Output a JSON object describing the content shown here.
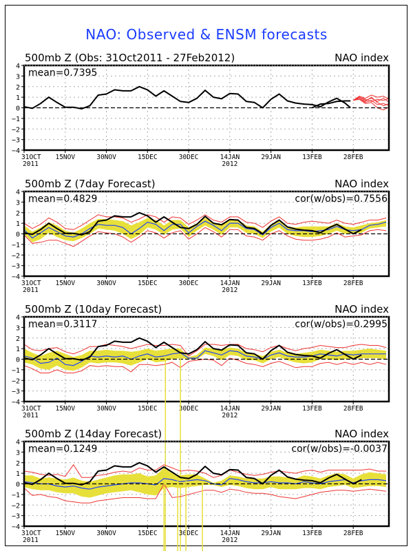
{
  "title": "NAO: Observed & ENSM forecasts",
  "colors": {
    "title": "#1a3cff",
    "observed": "#000000",
    "ensemble_mean": "#2244ee",
    "spread_fill": "#e8e03a",
    "envelope": "#ee3333",
    "forecast_members": "#ee3333"
  },
  "chart_data": [
    {
      "type": "line",
      "title": "500mb Z (Obs: 31Oct2011 - 27Feb2012)",
      "right_title": "NAO index",
      "annotation_left": "mean=0.7395",
      "annotation_right": "",
      "ylim": [
        -4,
        4
      ],
      "yticks": [
        4,
        3,
        2,
        1,
        0,
        -1,
        -2,
        -3,
        -4
      ],
      "xticks": [
        "31OCT",
        "15NOV",
        "30NOV",
        "15DEC",
        "30DEC",
        "14JAN",
        "29JAN",
        "13FEB",
        "28FEB"
      ],
      "xtick_sublabels": {
        "31OCT": "2011",
        "14JAN": "2012"
      },
      "xlim_days": [
        0,
        133
      ],
      "grid": true,
      "observed": {
        "name": "observed NAO",
        "days": [
          0,
          3,
          6,
          9,
          12,
          15,
          18,
          21,
          24,
          27,
          30,
          33,
          36,
          39,
          42,
          45,
          48,
          51,
          54,
          57,
          60,
          63,
          66,
          69,
          72,
          75,
          78,
          81,
          84,
          87,
          90,
          93,
          96,
          99,
          102,
          105,
          108,
          111,
          114,
          117,
          119
        ],
        "values": [
          0.1,
          -0.05,
          0.4,
          1.0,
          0.5,
          0.05,
          0.05,
          -0.1,
          0.2,
          1.2,
          1.3,
          1.7,
          1.6,
          1.6,
          2.0,
          1.7,
          1.1,
          1.6,
          1.1,
          0.6,
          0.5,
          0.9,
          1.65,
          1.0,
          0.85,
          1.35,
          1.3,
          0.6,
          0.5,
          0.0,
          0.8,
          1.3,
          0.65,
          0.45,
          0.35,
          0.3,
          0.1,
          0.55,
          0.9,
          0.45,
          0.0
        ]
      },
      "observed_tail": {
        "days": [
          119,
          122,
          125,
          128,
          131,
          133
        ],
        "values": [
          0.0,
          0.35,
          0.4,
          0.6,
          0.65,
          0.65
        ]
      },
      "forecast_members": {
        "name": "ensemble member forecasts",
        "start_day": 133,
        "members": [
          [
            0.7,
            1.0,
            0.7,
            0.9,
            0.6,
            0.9,
            0.5
          ],
          [
            0.7,
            0.9,
            0.5,
            0.7,
            0.3,
            0.4,
            0.2
          ],
          [
            0.7,
            1.1,
            0.9,
            1.2,
            1.0,
            1.1,
            0.8
          ],
          [
            0.7,
            0.8,
            0.4,
            0.5,
            0.0,
            -0.2,
            0.1
          ],
          [
            0.7,
            1.0,
            0.8,
            0.6,
            0.8,
            0.7,
            0.9
          ],
          [
            0.7,
            0.9,
            0.6,
            1.0,
            0.5,
            0.2,
            0.4
          ]
        ]
      }
    },
    {
      "type": "line",
      "title": "500mb Z (7day Forecast)",
      "right_title": "NAO index",
      "annotation_left": "mean=0.4829",
      "annotation_right": "cor(w/obs)=0.7556",
      "ylim": [
        -4,
        4
      ],
      "yticks": [
        4,
        3,
        2,
        1,
        0,
        -1,
        -2,
        -3,
        -4
      ],
      "xticks": [
        "31OCT",
        "15NOV",
        "30NOV",
        "15DEC",
        "30DEC",
        "14JAN",
        "29JAN",
        "13FEB",
        "28FEB"
      ],
      "xtick_sublabels": {
        "31OCT": "2011",
        "14JAN": "2012"
      },
      "grid": true,
      "days": [
        0,
        3,
        6,
        9,
        12,
        15,
        18,
        21,
        24,
        27,
        30,
        33,
        36,
        39,
        42,
        45,
        48,
        51,
        54,
        57,
        60,
        63,
        66,
        69,
        72,
        75,
        78,
        81,
        84,
        87,
        90,
        93,
        96,
        99,
        102,
        105,
        108,
        111,
        114,
        117,
        120,
        123,
        126,
        129,
        132
      ],
      "observed": [
        0.1,
        -0.05,
        0.4,
        1.0,
        0.5,
        0.05,
        0.05,
        -0.1,
        0.2,
        1.2,
        1.3,
        1.7,
        1.6,
        1.6,
        2.0,
        1.7,
        1.1,
        1.6,
        1.1,
        0.6,
        0.5,
        0.9,
        1.65,
        1.0,
        0.85,
        1.35,
        1.3,
        0.6,
        0.5,
        0.0,
        0.8,
        1.3,
        0.65,
        0.45,
        0.35,
        0.3,
        0.1,
        0.55,
        0.9,
        0.45,
        0.0,
        0.4,
        0.45,
        0.65,
        0.75
      ],
      "ensemble_mean": [
        0.4,
        -0.4,
        0.1,
        0.6,
        0.2,
        -0.2,
        -0.3,
        0.0,
        0.5,
        0.9,
        0.8,
        0.8,
        0.6,
        0.0,
        0.5,
        1.1,
        0.9,
        0.3,
        0.9,
        0.9,
        0.1,
        0.7,
        1.2,
        0.8,
        0.3,
        1.0,
        1.0,
        0.5,
        0.4,
        -0.1,
        0.6,
        1.0,
        0.4,
        0.3,
        0.3,
        0.2,
        0.3,
        0.4,
        0.7,
        0.4,
        0.3,
        0.4,
        0.8,
        0.9,
        1.1
      ],
      "spread_upper": [
        0.8,
        0.2,
        0.6,
        1.1,
        0.8,
        0.3,
        0.1,
        0.5,
        1.0,
        1.4,
        1.4,
        1.3,
        1.2,
        0.8,
        1.1,
        1.5,
        1.3,
        0.8,
        1.3,
        1.3,
        0.6,
        1.0,
        1.5,
        1.1,
        0.8,
        1.3,
        1.3,
        0.8,
        0.7,
        0.2,
        0.9,
        1.3,
        0.7,
        0.6,
        0.7,
        0.7,
        0.7,
        0.7,
        1.0,
        0.7,
        0.6,
        0.8,
        1.0,
        1.1,
        1.3
      ],
      "spread_lower": [
        0.0,
        -0.8,
        -0.5,
        0.1,
        -0.3,
        -0.6,
        -0.7,
        -0.4,
        0.0,
        0.5,
        0.4,
        0.3,
        0.0,
        -0.5,
        -0.1,
        0.6,
        0.4,
        -0.1,
        0.4,
        0.5,
        -0.3,
        0.3,
        0.8,
        0.4,
        -0.1,
        0.6,
        0.6,
        0.1,
        0.0,
        -0.4,
        0.2,
        0.6,
        0.0,
        -0.2,
        -0.3,
        -0.3,
        -0.2,
        0.0,
        0.3,
        0.0,
        0.0,
        0.1,
        0.5,
        0.6,
        0.7
      ],
      "envelope_upper": [
        1.0,
        0.5,
        0.9,
        1.5,
        1.1,
        0.5,
        0.4,
        0.8,
        1.3,
        1.8,
        1.6,
        1.6,
        1.5,
        1.1,
        1.4,
        1.8,
        1.6,
        1.1,
        1.6,
        1.5,
        0.9,
        1.3,
        1.8,
        1.3,
        1.1,
        1.6,
        1.6,
        1.1,
        1.0,
        0.6,
        1.2,
        1.6,
        1.0,
        0.9,
        1.1,
        1.2,
        1.1,
        1.0,
        1.3,
        1.0,
        0.9,
        1.1,
        1.3,
        1.3,
        1.5
      ],
      "envelope_lower": [
        -0.1,
        -0.9,
        -0.8,
        -0.6,
        -0.6,
        -0.9,
        -1.2,
        -0.7,
        -0.2,
        0.2,
        0.1,
        0.0,
        -0.3,
        -0.8,
        -0.3,
        0.3,
        0.1,
        -0.4,
        0.1,
        0.3,
        -0.5,
        0.0,
        0.6,
        0.2,
        -0.3,
        0.4,
        0.4,
        -0.2,
        -0.3,
        -0.6,
        0.0,
        0.3,
        -0.2,
        -0.5,
        -0.6,
        -0.6,
        -0.5,
        -0.3,
        0.1,
        -0.3,
        -0.2,
        -0.1,
        0.3,
        0.4,
        0.3
      ]
    },
    {
      "type": "line",
      "title": "500mb Z (10day Forecast)",
      "right_title": "NAO index",
      "annotation_left": "mean=0.3117",
      "annotation_right": "cor(w/obs)=0.2995",
      "ylim": [
        -4,
        4
      ],
      "yticks": [
        4,
        3,
        2,
        1,
        0,
        -1,
        -2,
        -3,
        -4
      ],
      "xticks": [
        "31OCT",
        "15NOV",
        "30NOV",
        "15DEC",
        "30DEC",
        "14JAN",
        "29JAN",
        "13FEB",
        "28FEB"
      ],
      "xtick_sublabels": {
        "31OCT": "2011",
        "14JAN": "2012"
      },
      "grid": true,
      "days": [
        0,
        3,
        6,
        9,
        12,
        15,
        18,
        21,
        24,
        27,
        30,
        33,
        36,
        39,
        42,
        45,
        48,
        51,
        54,
        57,
        60,
        63,
        66,
        69,
        72,
        75,
        78,
        81,
        84,
        87,
        90,
        93,
        96,
        99,
        102,
        105,
        108,
        111,
        114,
        117,
        120,
        123,
        126,
        129,
        132
      ],
      "observed": [
        0.1,
        -0.05,
        0.4,
        1.0,
        0.5,
        0.05,
        0.05,
        -0.1,
        0.2,
        1.2,
        1.3,
        1.7,
        1.6,
        1.6,
        2.0,
        1.7,
        1.1,
        1.6,
        1.1,
        0.6,
        0.5,
        0.9,
        1.65,
        1.0,
        0.85,
        1.35,
        1.3,
        0.6,
        0.5,
        0.0,
        0.8,
        1.3,
        0.65,
        0.45,
        0.35,
        0.3,
        0.1,
        0.55,
        0.9,
        0.45,
        0.0,
        0.4,
        0.45,
        0.65,
        0.75
      ],
      "ensemble_mean": [
        0.3,
        0.1,
        -0.4,
        -0.3,
        0.1,
        -0.5,
        -0.6,
        -0.2,
        0.3,
        0.2,
        0.3,
        0.2,
        0.3,
        0.0,
        0.3,
        0.5,
        0.2,
        0.3,
        0.5,
        0.6,
        0.1,
        0.1,
        0.8,
        0.6,
        0.4,
        0.8,
        0.7,
        0.3,
        0.2,
        0.0,
        0.4,
        0.6,
        0.3,
        0.2,
        0.2,
        0.3,
        0.5,
        0.4,
        0.3,
        0.5,
        0.4,
        0.5,
        0.5,
        0.5,
        0.5
      ],
      "spread_upper": [
        1.0,
        0.6,
        0.3,
        0.6,
        0.8,
        0.5,
        0.2,
        0.4,
        0.8,
        0.8,
        0.9,
        0.8,
        0.8,
        0.7,
        0.8,
        1.0,
        0.8,
        0.9,
        1.0,
        1.0,
        0.2,
        0.4,
        1.1,
        1.0,
        0.9,
        1.1,
        1.0,
        0.6,
        0.5,
        0.3,
        0.7,
        0.9,
        0.6,
        0.5,
        0.6,
        0.7,
        0.9,
        0.8,
        0.7,
        0.8,
        0.8,
        0.9,
        1.0,
        0.9,
        0.8
      ],
      "spread_lower": [
        -0.3,
        -0.5,
        -0.9,
        -1.0,
        -0.6,
        -1.0,
        -1.1,
        -0.8,
        -0.3,
        -0.4,
        -0.3,
        -0.3,
        -0.4,
        -0.6,
        -0.3,
        0.0,
        -0.3,
        -0.2,
        0.0,
        0.1,
        0.0,
        0.0,
        0.5,
        0.3,
        -0.1,
        0.4,
        0.3,
        -0.1,
        -0.1,
        -0.4,
        0.0,
        0.2,
        -0.1,
        -0.3,
        -0.4,
        -0.3,
        0.0,
        0.0,
        -0.1,
        0.0,
        0.0,
        0.1,
        0.1,
        0.1,
        0.0
      ],
      "envelope_upper": [
        1.4,
        0.9,
        0.8,
        1.0,
        1.1,
        0.7,
        0.5,
        0.8,
        1.2,
        1.2,
        1.4,
        1.3,
        1.2,
        1.0,
        1.2,
        1.4,
        1.3,
        1.3,
        1.4,
        1.3,
        0.3,
        0.8,
        1.4,
        1.4,
        1.3,
        1.4,
        1.4,
        1.0,
        0.9,
        0.7,
        1.1,
        1.3,
        1.0,
        0.8,
        1.0,
        1.1,
        1.3,
        1.2,
        1.1,
        1.1,
        1.3,
        1.4,
        1.3,
        1.3,
        1.1
      ],
      "envelope_lower": [
        -0.6,
        -0.9,
        -1.3,
        -1.3,
        -1.0,
        -1.3,
        -1.3,
        -1.1,
        -0.6,
        -0.7,
        -0.6,
        -0.7,
        -0.7,
        -1.2,
        -0.5,
        -0.5,
        -0.6,
        -0.5,
        -0.3,
        -0.8,
        -0.2,
        -0.1,
        0.0,
        -0.1,
        -0.6,
        0.1,
        -0.1,
        -0.4,
        -0.5,
        -0.7,
        -0.4,
        -0.2,
        -0.5,
        -0.8,
        -0.7,
        -0.7,
        -0.4,
        -0.3,
        -0.5,
        -0.3,
        -0.5,
        -0.3,
        -0.5,
        -0.3,
        -0.5
      ],
      "anomalous_spikes_days": [
        51.5,
        57
      ]
    },
    {
      "type": "line",
      "title": "500mb Z (14day Forecast)",
      "right_title": "NAO index",
      "annotation_left": "mean=0.1249",
      "annotation_right": "cor(w/obs)=-0.0037",
      "ylim": [
        -4,
        4
      ],
      "yticks": [
        4,
        3,
        2,
        1,
        0,
        -1,
        -2,
        -3,
        -4
      ],
      "xticks": [
        "31OCT",
        "15NOV",
        "30NOV",
        "15DEC",
        "30DEC",
        "14JAN",
        "29JAN",
        "13FEB",
        "28FEB"
      ],
      "xtick_sublabels": {
        "31OCT": "2011",
        "14JAN": "2012"
      },
      "grid": true,
      "days": [
        0,
        3,
        6,
        9,
        12,
        15,
        18,
        21,
        24,
        27,
        30,
        33,
        36,
        39,
        42,
        45,
        48,
        51,
        54,
        57,
        60,
        63,
        66,
        69,
        72,
        75,
        78,
        81,
        84,
        87,
        90,
        93,
        96,
        99,
        102,
        105,
        108,
        111,
        114,
        117,
        120,
        123,
        126,
        129,
        132
      ],
      "observed": [
        0.1,
        -0.05,
        0.4,
        1.0,
        0.5,
        0.05,
        0.05,
        -0.1,
        0.2,
        1.2,
        1.3,
        1.7,
        1.6,
        1.6,
        2.0,
        1.7,
        1.1,
        1.6,
        1.1,
        0.6,
        0.5,
        0.9,
        1.65,
        1.0,
        0.85,
        1.35,
        1.3,
        0.6,
        0.5,
        0.0,
        0.8,
        1.3,
        0.65,
        0.45,
        0.35,
        0.3,
        0.1,
        0.55,
        0.9,
        0.45,
        0.0,
        0.4,
        0.45,
        0.65,
        0.75
      ],
      "ensemble_mean": [
        0.2,
        0.1,
        0.0,
        0.0,
        -0.2,
        -0.3,
        -0.2,
        -0.4,
        -0.5,
        -0.3,
        -0.2,
        -0.1,
        0.0,
        0.1,
        0.1,
        0.0,
        -0.1,
        0.5,
        0.4,
        0.2,
        0.3,
        0.4,
        0.3,
        0.0,
        -0.1,
        0.5,
        0.4,
        0.2,
        0.1,
        0.1,
        0.2,
        0.1,
        0.1,
        0.0,
        0.2,
        0.1,
        0.0,
        0.2,
        0.3,
        0.4,
        0.1,
        0.3,
        0.4,
        0.4,
        0.3
      ],
      "spread_upper": [
        0.8,
        0.8,
        0.5,
        0.6,
        0.5,
        0.4,
        0.6,
        0.3,
        0.2,
        0.4,
        0.6,
        0.8,
        0.9,
        0.9,
        1.0,
        0.7,
        0.8,
        1.5,
        1.0,
        0.8,
        0.9,
        0.9,
        0.5,
        0.1,
        0.3,
        0.8,
        0.7,
        0.5,
        0.5,
        0.5,
        0.7,
        0.7,
        0.6,
        0.5,
        0.8,
        0.7,
        0.5,
        0.8,
        1.0,
        0.9,
        0.5,
        0.9,
        1.1,
        1.0,
        0.9
      ],
      "spread_lower": [
        -0.3,
        -0.5,
        -0.6,
        -0.6,
        -0.8,
        -0.9,
        -0.9,
        -1.2,
        -1.3,
        -1.1,
        -0.9,
        -0.8,
        -0.7,
        -0.6,
        -0.8,
        -1.0,
        -1.1,
        -0.4,
        -0.3,
        -0.4,
        -0.3,
        -0.2,
        -0.1,
        -0.1,
        -0.3,
        -0.1,
        -0.2,
        -0.4,
        -0.5,
        -0.5,
        -0.3,
        -0.5,
        -0.5,
        -0.5,
        -0.4,
        -0.4,
        -0.5,
        -0.3,
        -0.2,
        -0.1,
        -0.4,
        -0.3,
        -0.2,
        -0.2,
        -0.3
      ],
      "envelope_upper": [
        1.2,
        1.1,
        0.9,
        0.8,
        0.9,
        0.7,
        1.8,
        0.6,
        0.6,
        0.8,
        0.9,
        1.1,
        1.2,
        1.1,
        1.5,
        1.3,
        1.3,
        1.8,
        1.5,
        1.2,
        1.3,
        1.2,
        1.0,
        0.6,
        0.8,
        1.3,
        1.1,
        0.9,
        0.8,
        0.9,
        1.1,
        1.2,
        1.1,
        1.0,
        1.2,
        1.3,
        1.1,
        1.3,
        1.3,
        1.3,
        1.3,
        1.3,
        1.4,
        1.2,
        1.2
      ],
      "envelope_lower": [
        -0.4,
        -1.1,
        -1.0,
        -1.2,
        -1.3,
        -1.6,
        -1.7,
        -1.8,
        -1.8,
        -1.6,
        -1.5,
        -1.4,
        -1.3,
        -1.3,
        -1.3,
        -1.4,
        -1.4,
        0.0,
        -1.3,
        -1.2,
        -1.0,
        -0.8,
        -0.6,
        -0.6,
        -0.8,
        -0.5,
        -0.6,
        -0.8,
        -0.9,
        -0.9,
        -1.0,
        -1.2,
        -1.3,
        -1.4,
        -1.2,
        -1.0,
        -0.8,
        -0.7,
        -0.6,
        -0.6,
        -0.7,
        -0.6,
        -0.5,
        -0.6,
        -0.7
      ],
      "anomalous_spikes_days": [
        51,
        56,
        59,
        65
      ]
    }
  ]
}
